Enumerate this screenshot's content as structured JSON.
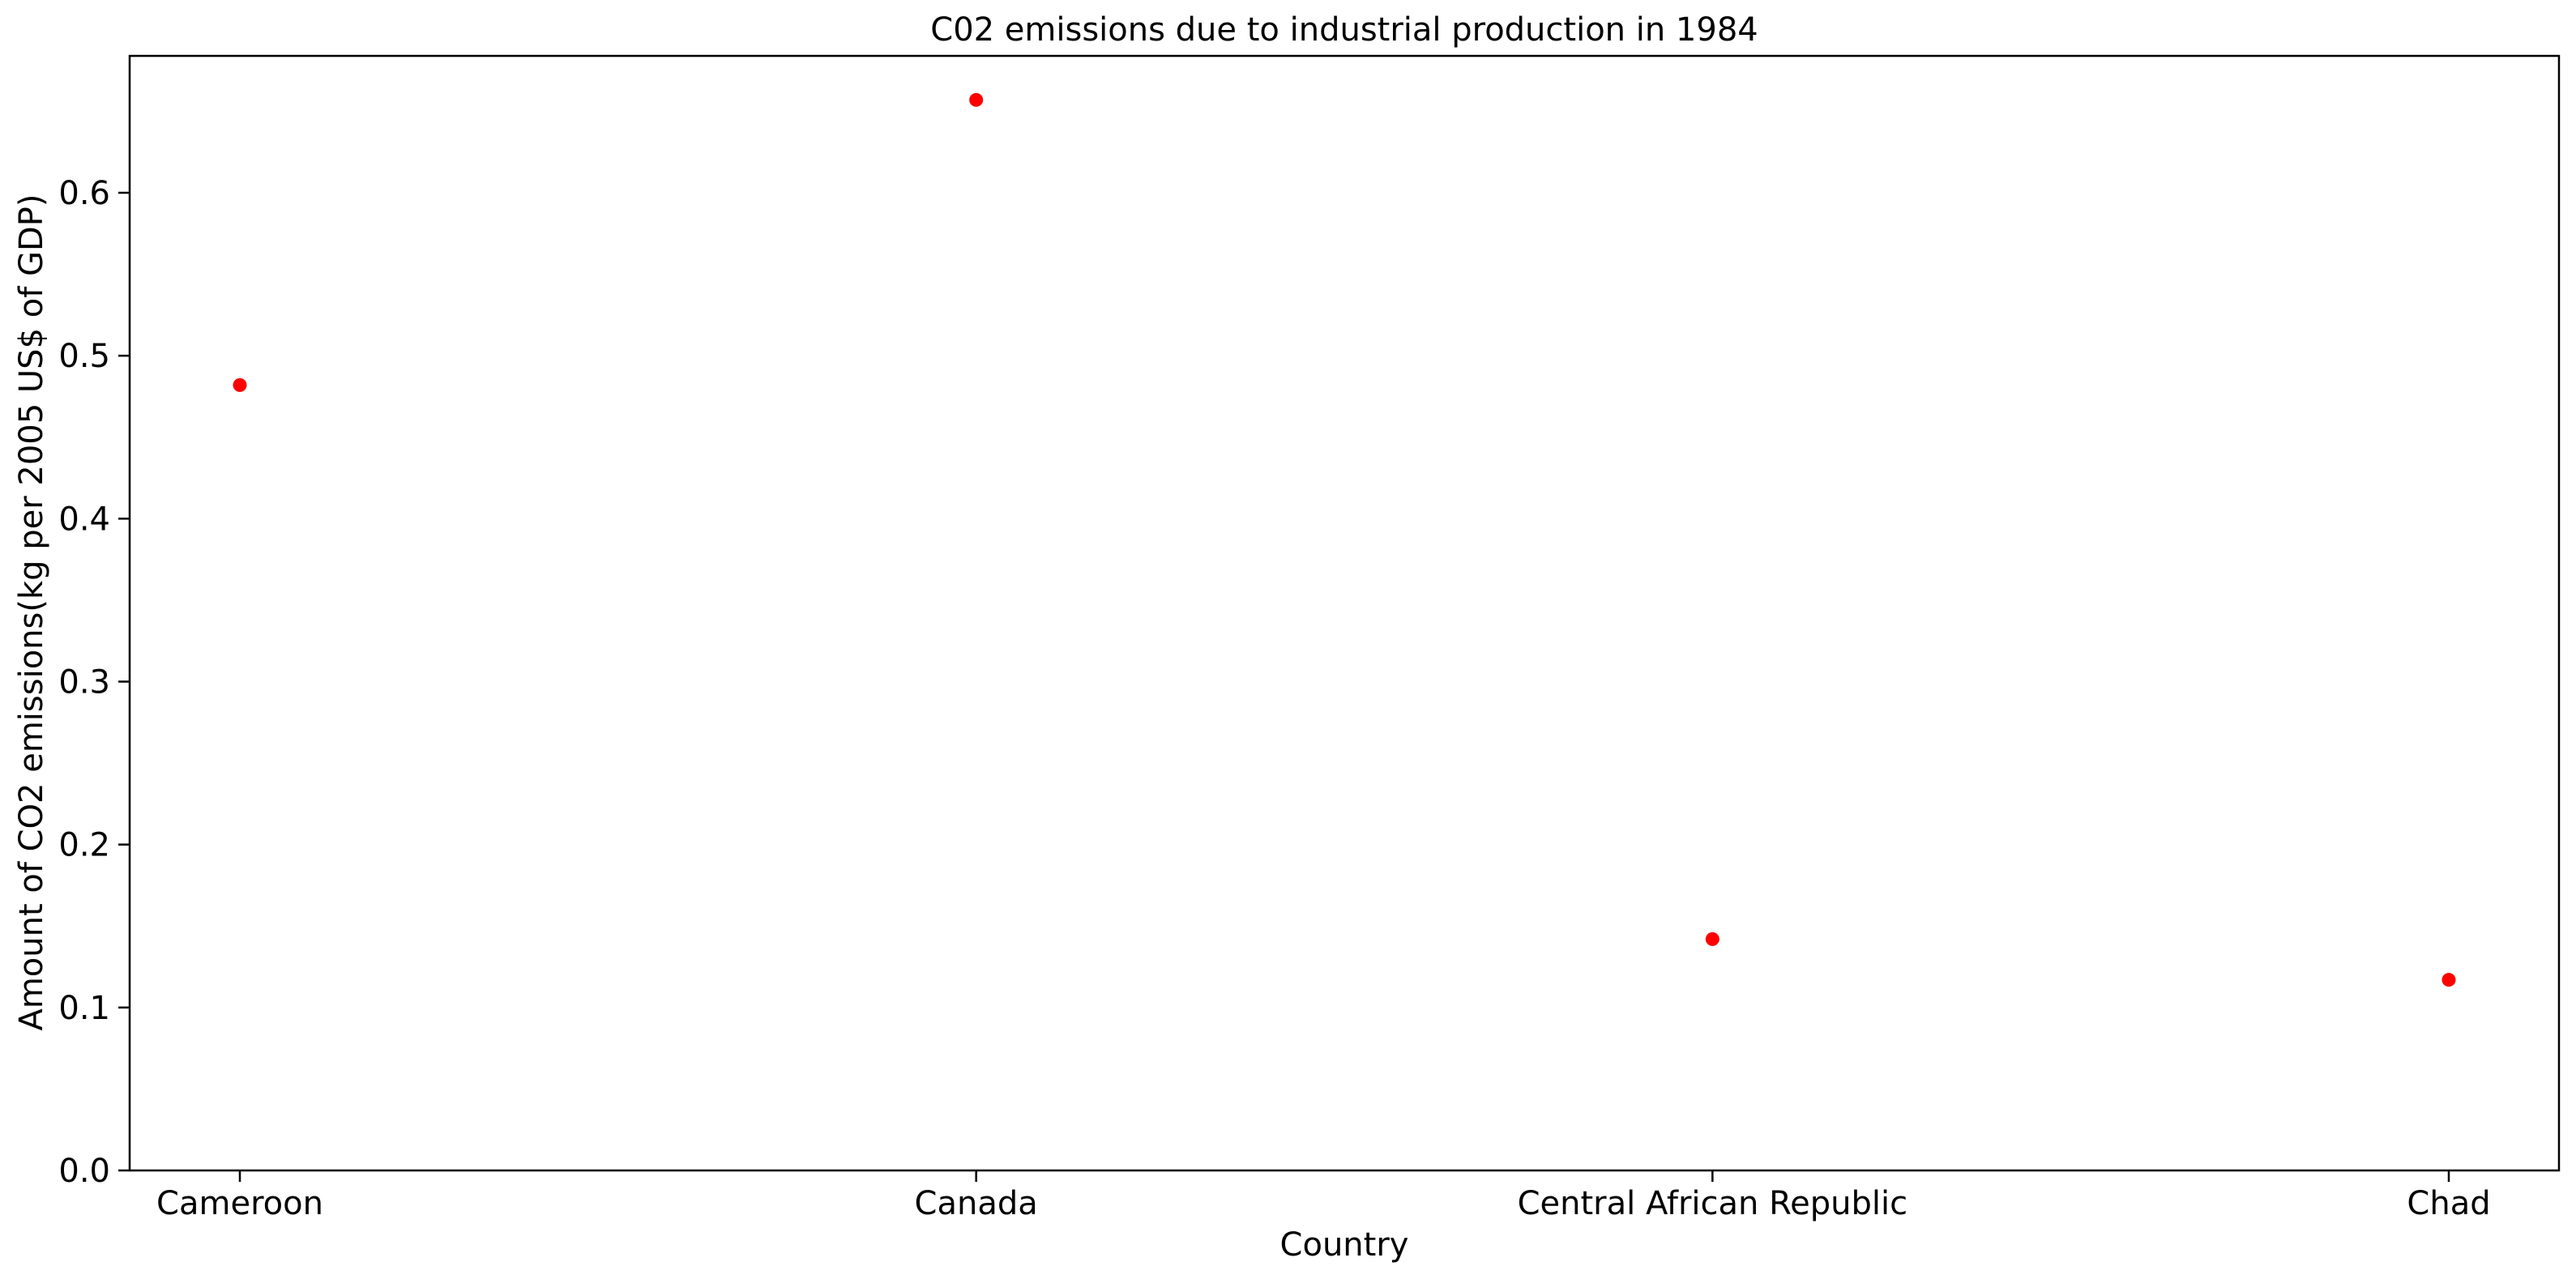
{
  "chart_data": {
    "type": "scatter",
    "title": "C02 emissions due to industrial production in 1984",
    "xlabel": "Country",
    "ylabel": "Amount of CO2 emissions(kg per 2005 US$ of GDP)",
    "categories": [
      "Cameroon",
      "Canada",
      "Central African Republic",
      "Chad"
    ],
    "series": [
      {
        "values": [
          0.482,
          0.657,
          0.142,
          0.117
        ]
      }
    ],
    "ylim": [
      0.0,
      0.684
    ],
    "yticks": [
      "0.0",
      "0.1",
      "0.2",
      "0.3",
      "0.4",
      "0.5",
      "0.6"
    ],
    "grid": false,
    "legend": "none",
    "marker_color": "#ff0000"
  }
}
